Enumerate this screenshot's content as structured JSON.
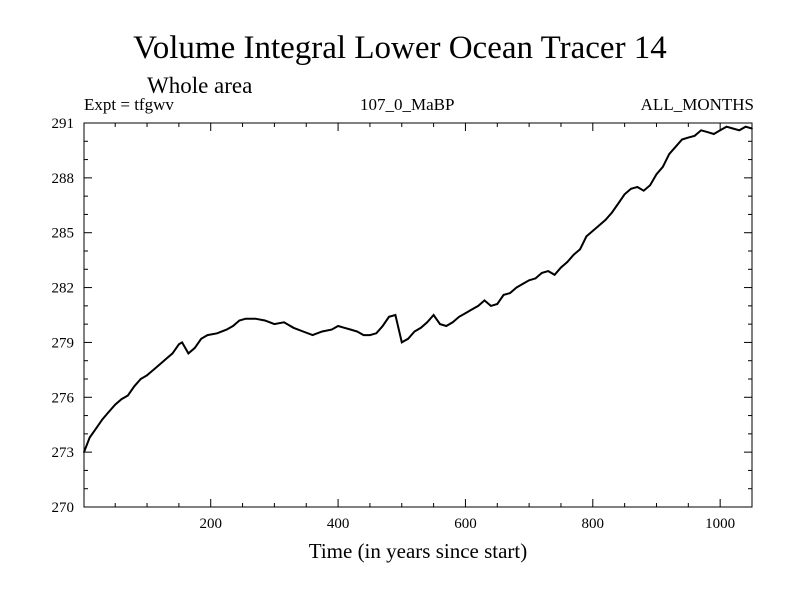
{
  "header": {
    "title": "Volume Integral Lower Ocean Tracer 14",
    "subtitle": "Whole area",
    "expt": "Expt = tfgwv",
    "run": "107_0_MaBP",
    "months": "ALL_MONTHS"
  },
  "chart_data": {
    "type": "line",
    "title": "Volume Integral Lower Ocean Tracer 14",
    "subtitle": "Whole area",
    "xlabel": "Time (in years since start)",
    "ylabel": "",
    "xlim": [
      1,
      1050
    ],
    "ylim": [
      270,
      291
    ],
    "xticks": [
      200,
      400,
      600,
      800,
      1000
    ],
    "yticks": [
      270,
      273,
      276,
      279,
      282,
      285,
      288,
      291
    ],
    "grid": false,
    "series": [
      {
        "name": "Tracer 14",
        "color": "#000000",
        "x": [
          1,
          10,
          20,
          30,
          40,
          50,
          60,
          70,
          80,
          90,
          100,
          110,
          120,
          130,
          140,
          150,
          155,
          165,
          175,
          185,
          195,
          210,
          225,
          235,
          245,
          255,
          270,
          285,
          300,
          315,
          330,
          345,
          360,
          375,
          390,
          400,
          410,
          420,
          430,
          440,
          450,
          460,
          470,
          480,
          490,
          500,
          510,
          520,
          530,
          540,
          550,
          560,
          570,
          580,
          590,
          600,
          610,
          620,
          630,
          640,
          650,
          660,
          670,
          680,
          690,
          700,
          710,
          720,
          730,
          740,
          750,
          760,
          770,
          780,
          790,
          800,
          810,
          820,
          830,
          840,
          850,
          860,
          870,
          880,
          890,
          900,
          910,
          920,
          930,
          940,
          950,
          960,
          970,
          980,
          990,
          1000,
          1010,
          1020,
          1030,
          1040,
          1050
        ],
        "values": [
          273.0,
          273.8,
          274.3,
          274.8,
          275.2,
          275.6,
          275.9,
          276.1,
          276.6,
          277.0,
          277.2,
          277.5,
          277.8,
          278.1,
          278.4,
          278.9,
          279.0,
          278.4,
          278.7,
          279.2,
          279.4,
          279.5,
          279.7,
          279.9,
          280.2,
          280.3,
          280.3,
          280.2,
          280.0,
          280.1,
          279.8,
          279.6,
          279.4,
          279.6,
          279.7,
          279.9,
          279.8,
          279.7,
          279.6,
          279.4,
          279.4,
          279.5,
          279.9,
          280.4,
          280.5,
          279.0,
          279.2,
          279.6,
          279.8,
          280.1,
          280.5,
          280.0,
          279.9,
          280.1,
          280.4,
          280.6,
          280.8,
          281.0,
          281.3,
          281.0,
          281.1,
          281.6,
          281.7,
          282.0,
          282.2,
          282.4,
          282.5,
          282.8,
          282.9,
          282.7,
          283.1,
          283.4,
          283.8,
          284.1,
          284.8,
          285.1,
          285.4,
          285.7,
          286.1,
          286.6,
          287.1,
          287.4,
          287.5,
          287.3,
          287.6,
          288.2,
          288.6,
          289.3,
          289.7,
          290.1,
          290.2,
          290.3,
          290.6,
          290.5,
          290.4,
          290.6,
          290.8,
          290.7,
          290.6,
          290.8,
          290.7
        ]
      }
    ]
  }
}
